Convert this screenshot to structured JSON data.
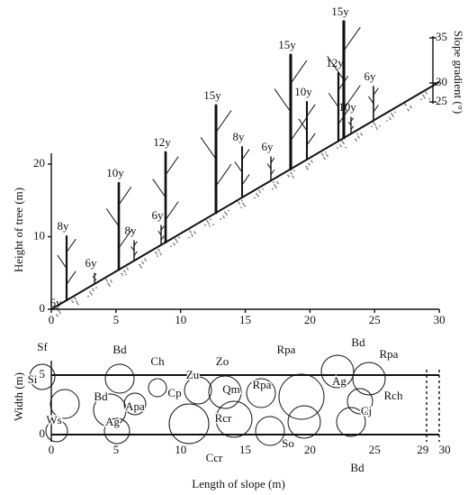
{
  "upper": {
    "y_label": "Height of tree (m)",
    "yticks": [
      0,
      10,
      20
    ],
    "xticks": [
      0,
      5,
      10,
      15,
      20,
      25,
      30
    ],
    "tree_ages": [
      "6y",
      "8y",
      "6y",
      "10y",
      "8y",
      "12y",
      "6y",
      "15y",
      "8y",
      "6y",
      "15y",
      "12y",
      "15y",
      "10y",
      "10y",
      "6y"
    ]
  },
  "slope_axis": {
    "label": "Slope gradient (°)",
    "ticks": [
      35,
      30,
      25
    ]
  },
  "lower": {
    "y_label": "Width (m)",
    "yticks": [
      0,
      5
    ],
    "xticks": [
      0,
      5,
      10,
      15,
      20,
      25,
      29,
      30
    ],
    "x_label": "Length of slope (m)",
    "species": [
      "Sf",
      "Bd",
      "Ch",
      "Zo",
      "Rpa",
      "Bd",
      "Rpa",
      "Zu",
      "Cp",
      "Qm",
      "Rpa",
      "Ag",
      "Rch",
      "Cj",
      "Si",
      "Bd",
      "Apa",
      "Rcr",
      "Ws",
      "Ag",
      "Ccr",
      "So",
      "Bd"
    ]
  }
}
